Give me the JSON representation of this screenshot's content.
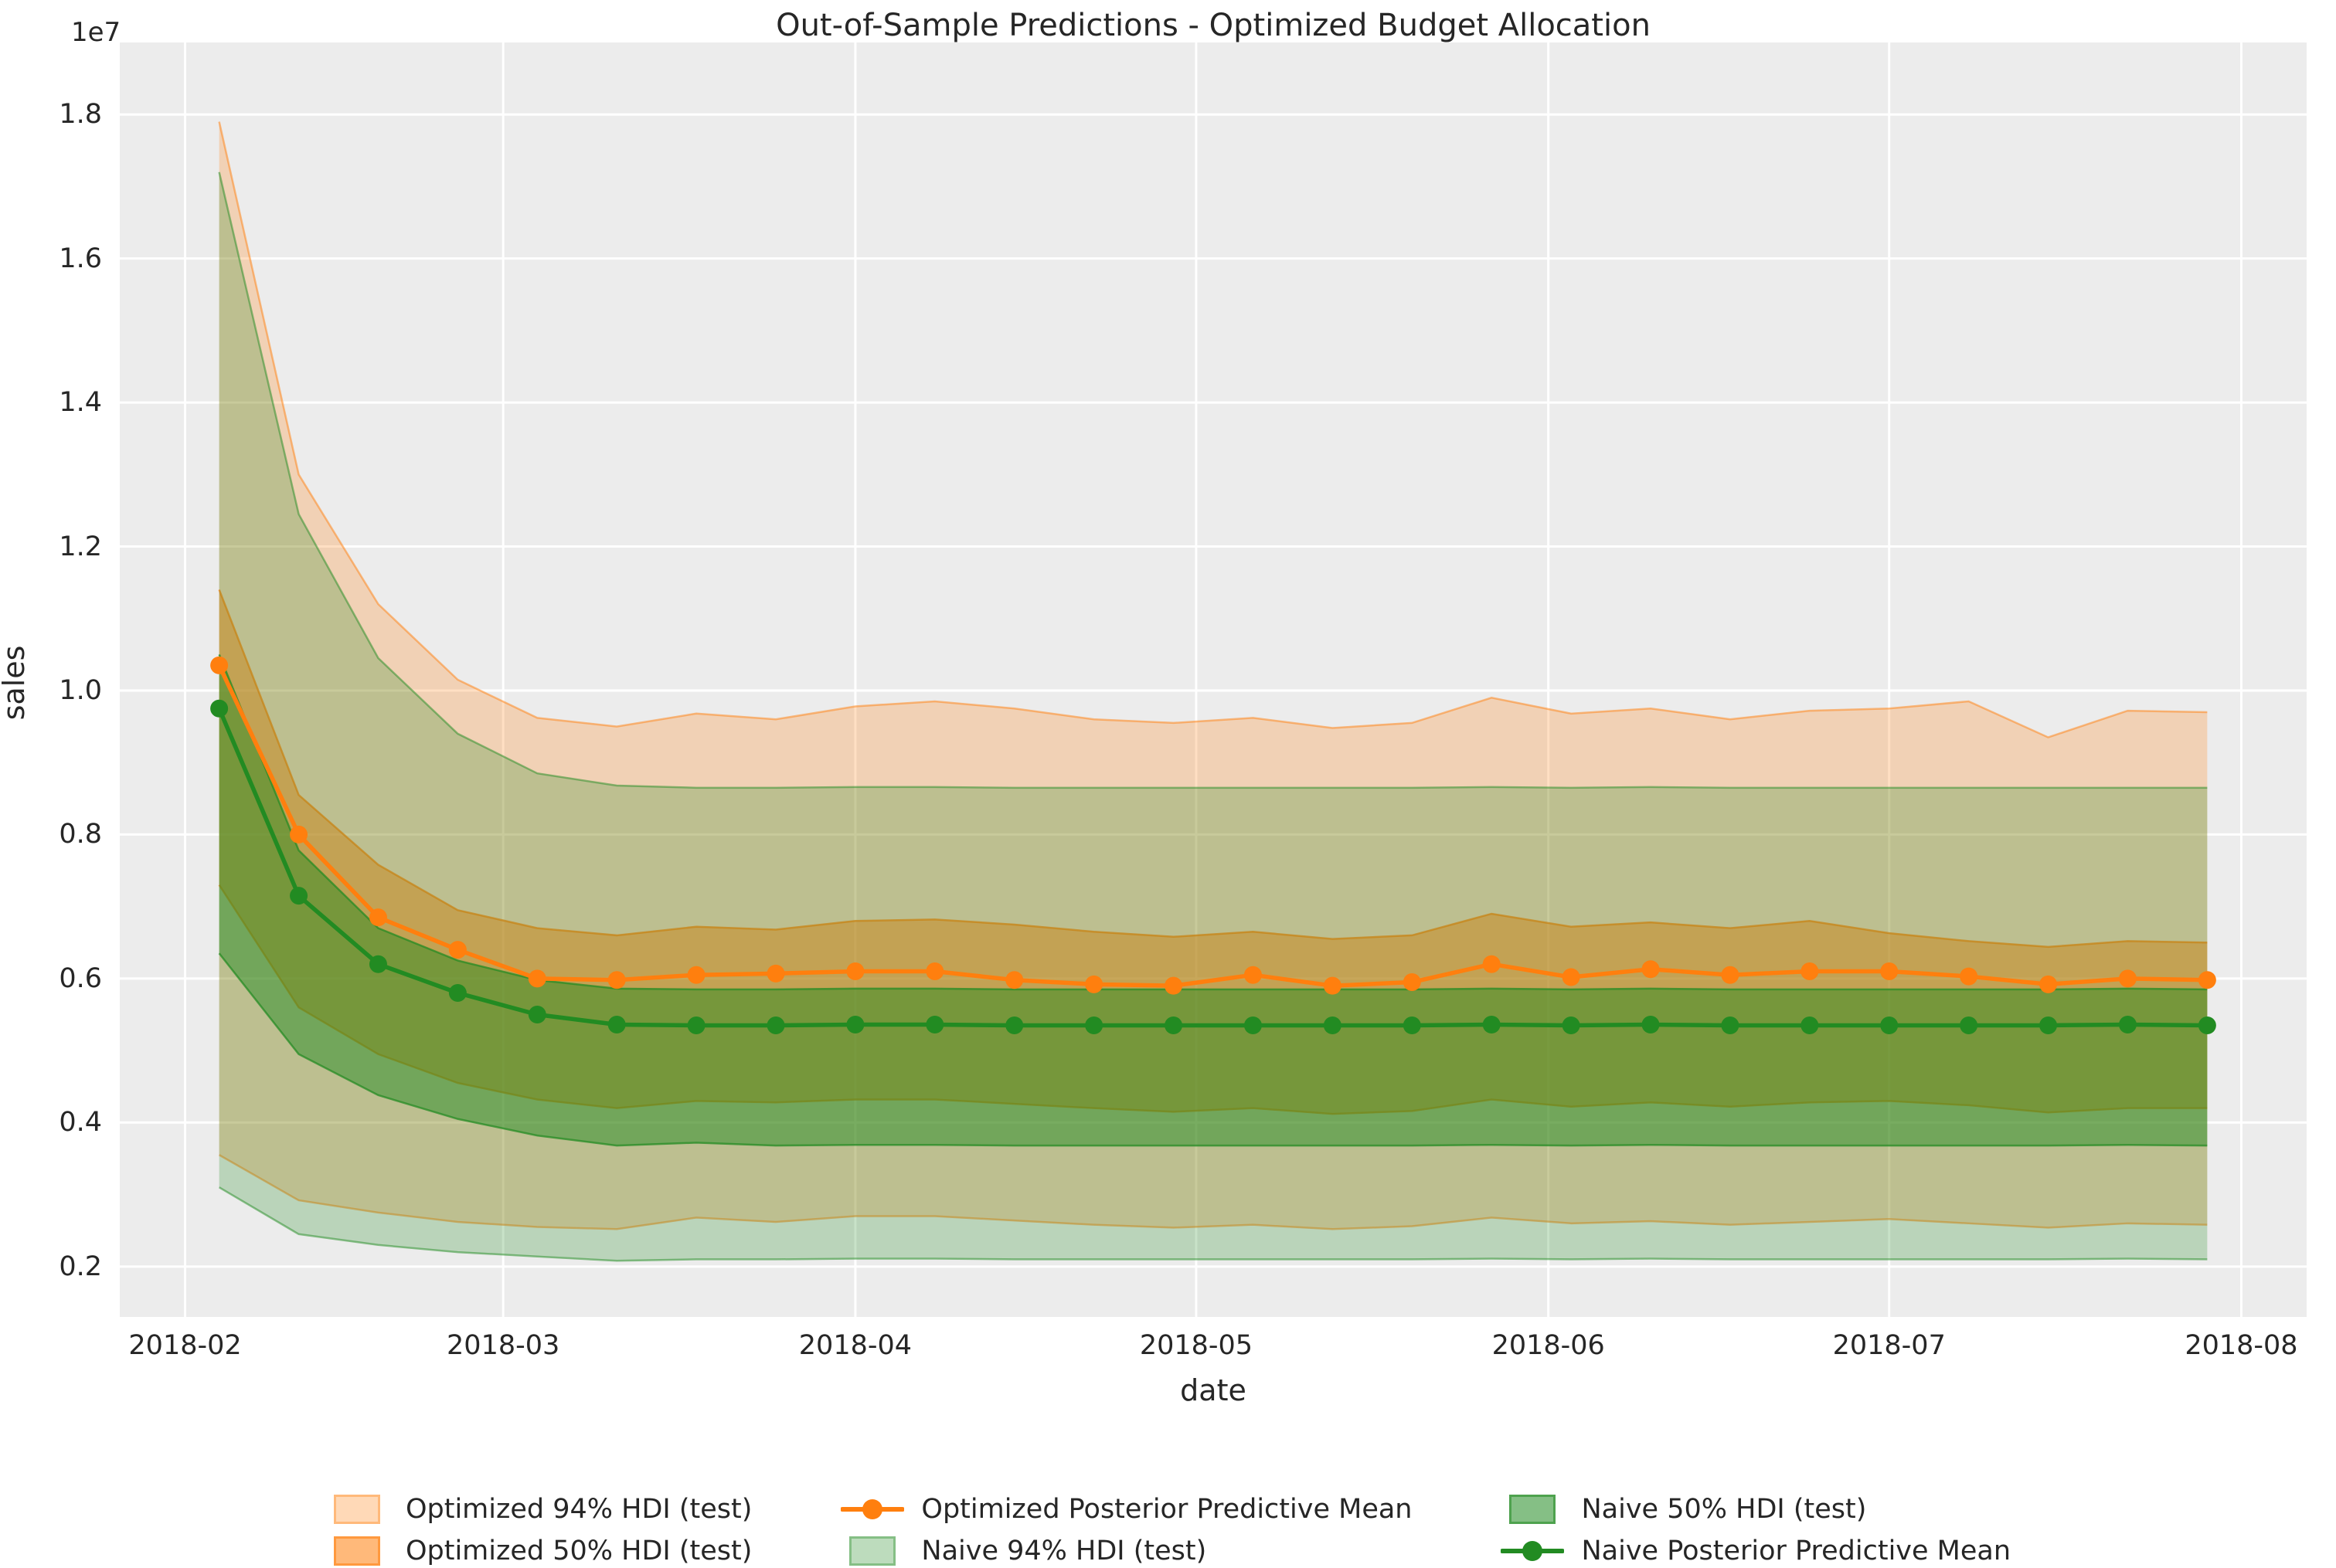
{
  "chart_data": {
    "type": "line",
    "title": "Out-of-Sample Predictions - Optimized Budget Allocation",
    "xlabel": "date",
    "ylabel": "sales",
    "y_offset_label": "1e7",
    "y_unit": "1e7",
    "grid": true,
    "plot_background": "#ececec",
    "grid_color": "#ffffff",
    "legend_position": "below",
    "x_tick_labels": [
      "2018-02",
      "2018-03",
      "2018-04",
      "2018-05",
      "2018-06",
      "2018-07",
      "2018-08"
    ],
    "x_tick_days": [
      0,
      28,
      59,
      89,
      120,
      150,
      181
    ],
    "y_ticks": [
      0.2,
      0.4,
      0.6,
      0.8,
      1.0,
      1.2,
      1.4,
      1.6,
      1.8
    ],
    "xlim_days": [
      -5.75,
      186.75
    ],
    "ylim": [
      0.13,
      1.9
    ],
    "x": [
      "2018-02-04",
      "2018-02-11",
      "2018-02-18",
      "2018-02-25",
      "2018-03-04",
      "2018-03-11",
      "2018-03-18",
      "2018-03-25",
      "2018-04-01",
      "2018-04-08",
      "2018-04-15",
      "2018-04-22",
      "2018-04-29",
      "2018-05-06",
      "2018-05-13",
      "2018-05-20",
      "2018-05-27",
      "2018-06-03",
      "2018-06-10",
      "2018-06-17",
      "2018-06-24",
      "2018-07-01",
      "2018-07-08",
      "2018-07-15",
      "2018-07-22",
      "2018-07-29"
    ],
    "x_days": [
      3,
      10,
      17,
      24,
      31,
      38,
      45,
      52,
      59,
      66,
      73,
      80,
      87,
      94,
      101,
      108,
      115,
      122,
      129,
      136,
      143,
      150,
      157,
      164,
      171,
      178
    ],
    "series": [
      {
        "name": "Optimized Posterior Predictive Mean",
        "color": "#ff7f0e",
        "values": [
          1.035,
          0.8,
          0.685,
          0.64,
          0.6,
          0.598,
          0.605,
          0.607,
          0.61,
          0.61,
          0.598,
          0.592,
          0.59,
          0.605,
          0.59,
          0.595,
          0.62,
          0.602,
          0.613,
          0.605,
          0.61,
          0.61,
          0.603,
          0.592,
          0.6,
          0.598
        ]
      },
      {
        "name": "Naive Posterior Predictive Mean",
        "color": "#228b22",
        "values": [
          0.975,
          0.715,
          0.62,
          0.58,
          0.55,
          0.536,
          0.535,
          0.535,
          0.536,
          0.536,
          0.535,
          0.535,
          0.535,
          0.535,
          0.535,
          0.535,
          0.536,
          0.535,
          0.536,
          0.535,
          0.535,
          0.535,
          0.535,
          0.535,
          0.536,
          0.535
        ]
      }
    ],
    "bands": [
      {
        "name": "Optimized 94% HDI (test)",
        "color": "#ff7f0e",
        "alpha": 0.25,
        "upper": [
          1.79,
          1.3,
          1.12,
          1.015,
          0.962,
          0.95,
          0.968,
          0.96,
          0.978,
          0.985,
          0.975,
          0.96,
          0.955,
          0.962,
          0.948,
          0.955,
          0.99,
          0.968,
          0.975,
          0.96,
          0.972,
          0.975,
          0.985,
          0.935,
          0.972,
          0.97
        ],
        "lower": [
          0.355,
          0.292,
          0.275,
          0.262,
          0.255,
          0.252,
          0.268,
          0.262,
          0.27,
          0.27,
          0.264,
          0.258,
          0.254,
          0.258,
          0.252,
          0.256,
          0.268,
          0.26,
          0.263,
          0.258,
          0.262,
          0.266,
          0.26,
          0.254,
          0.26,
          0.258
        ]
      },
      {
        "name": "Optimized 50% HDI (test)",
        "color": "#ff7f0e",
        "alpha": 0.48,
        "upper": [
          1.14,
          0.855,
          0.758,
          0.695,
          0.67,
          0.66,
          0.672,
          0.668,
          0.68,
          0.682,
          0.675,
          0.665,
          0.658,
          0.665,
          0.655,
          0.66,
          0.69,
          0.672,
          0.678,
          0.67,
          0.68,
          0.663,
          0.652,
          0.644,
          0.652,
          0.65
        ],
        "lower": [
          0.73,
          0.56,
          0.495,
          0.455,
          0.432,
          0.42,
          0.43,
          0.428,
          0.432,
          0.432,
          0.426,
          0.42,
          0.415,
          0.42,
          0.412,
          0.416,
          0.432,
          0.422,
          0.428,
          0.422,
          0.428,
          0.43,
          0.424,
          0.414,
          0.42,
          0.42
        ]
      },
      {
        "name": "Naive 94% HDI (test)",
        "color": "#228b22",
        "alpha": 0.25,
        "upper": [
          1.72,
          1.245,
          1.045,
          0.94,
          0.885,
          0.868,
          0.865,
          0.865,
          0.866,
          0.866,
          0.865,
          0.865,
          0.865,
          0.865,
          0.865,
          0.865,
          0.866,
          0.865,
          0.866,
          0.865,
          0.865,
          0.865,
          0.865,
          0.865,
          0.865,
          0.865
        ],
        "lower": [
          0.31,
          0.245,
          0.23,
          0.22,
          0.214,
          0.208,
          0.21,
          0.21,
          0.211,
          0.211,
          0.21,
          0.21,
          0.21,
          0.21,
          0.21,
          0.21,
          0.211,
          0.21,
          0.211,
          0.21,
          0.21,
          0.21,
          0.21,
          0.21,
          0.211,
          0.21
        ]
      },
      {
        "name": "Naive 50% HDI (test)",
        "color": "#228b22",
        "alpha": 0.48,
        "upper": [
          1.05,
          0.778,
          0.67,
          0.625,
          0.598,
          0.586,
          0.585,
          0.585,
          0.586,
          0.586,
          0.585,
          0.585,
          0.585,
          0.585,
          0.585,
          0.585,
          0.586,
          0.585,
          0.586,
          0.585,
          0.585,
          0.585,
          0.585,
          0.585,
          0.586,
          0.585
        ],
        "lower": [
          0.635,
          0.495,
          0.438,
          0.405,
          0.382,
          0.368,
          0.372,
          0.368,
          0.369,
          0.369,
          0.368,
          0.368,
          0.368,
          0.368,
          0.368,
          0.368,
          0.369,
          0.368,
          0.369,
          0.368,
          0.368,
          0.368,
          0.368,
          0.368,
          0.369,
          0.368
        ]
      }
    ]
  },
  "legend": {
    "columns": [
      [
        {
          "marker": "patch",
          "color": "#ff7f0e",
          "alpha": 0.3,
          "label": "Optimized 94% HDI (test)"
        },
        {
          "marker": "patch",
          "color": "#ff7f0e",
          "alpha": 0.55,
          "label": "Optimized 50% HDI (test)"
        }
      ],
      [
        {
          "marker": "line",
          "color": "#ff7f0e",
          "label": "Optimized Posterior Predictive Mean"
        },
        {
          "marker": "patch",
          "color": "#228b22",
          "alpha": 0.3,
          "label": "Naive 94% HDI (test)"
        }
      ],
      [
        {
          "marker": "patch",
          "color": "#228b22",
          "alpha": 0.55,
          "label": "Naive 50% HDI (test)"
        },
        {
          "marker": "line",
          "color": "#228b22",
          "label": "Naive Posterior Predictive Mean"
        }
      ]
    ]
  }
}
